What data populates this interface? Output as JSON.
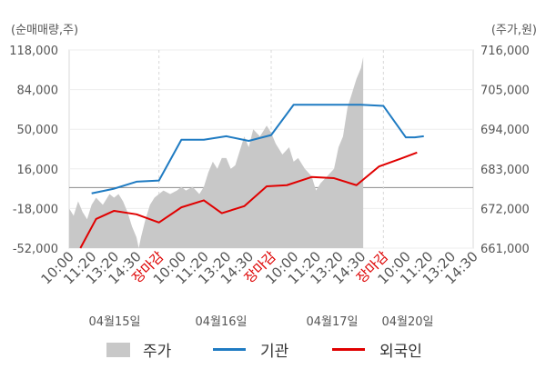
{
  "units": {
    "left": "(순매매량,주)",
    "right": "(주가,원)"
  },
  "colors": {
    "price_area": "#c8c8c8",
    "institution": "#1f7bc2",
    "foreign": "#e00000",
    "holiday_label": "#dd0000"
  },
  "legend": {
    "price": "주가",
    "institution": "기관",
    "foreign": "외국인"
  },
  "chart_data": {
    "type": "line",
    "y_left": {
      "ticks": [
        "118,000",
        "84,000",
        "50,000",
        "16,000",
        "-18,000",
        "-52,000"
      ],
      "values": [
        118000,
        84000,
        50000,
        16000,
        -18000,
        -52000
      ],
      "range": [
        -52000,
        118000
      ]
    },
    "y_right": {
      "ticks": [
        "716,000",
        "705,000",
        "694,000",
        "683,000",
        "672,000",
        "661,000"
      ],
      "values": [
        716000,
        705000,
        694000,
        683000,
        672000,
        661000
      ],
      "range": [
        661000,
        716000
      ]
    },
    "x_labels": [
      {
        "text": "10:00",
        "holiday": false
      },
      {
        "text": "11:20",
        "holiday": false
      },
      {
        "text": "13:20",
        "holiday": false
      },
      {
        "text": "14:30",
        "holiday": false
      },
      {
        "text": "장마감",
        "holiday": true
      },
      {
        "text": "10:00",
        "holiday": false
      },
      {
        "text": "11:20",
        "holiday": false
      },
      {
        "text": "13:20",
        "holiday": false
      },
      {
        "text": "14:30",
        "holiday": false
      },
      {
        "text": "장마감",
        "holiday": true
      },
      {
        "text": "10:00",
        "holiday": false
      },
      {
        "text": "11:20",
        "holiday": false
      },
      {
        "text": "13:20",
        "holiday": false
      },
      {
        "text": "14:30",
        "holiday": false
      },
      {
        "text": "장마감",
        "holiday": true
      },
      {
        "text": "10:00",
        "holiday": false
      },
      {
        "text": "11:20",
        "holiday": false
      },
      {
        "text": "13:20",
        "holiday": false
      },
      {
        "text": "14:30",
        "holiday": false
      }
    ],
    "day_labels": [
      "04월15일",
      "04월16일",
      "04월17일",
      "04월20일"
    ],
    "series": [
      {
        "name": "기관",
        "axis": "left",
        "points": [
          [
            1,
            -5000
          ],
          [
            2,
            -1000
          ],
          [
            3,
            5000
          ],
          [
            4,
            6000
          ],
          [
            5,
            41000
          ],
          [
            6,
            41000
          ],
          [
            7,
            44000
          ],
          [
            8,
            40000
          ],
          [
            9,
            45000
          ],
          [
            10,
            71000
          ],
          [
            11,
            71000
          ],
          [
            12,
            71000
          ],
          [
            13,
            71000
          ],
          [
            14,
            70000
          ],
          [
            15,
            43000
          ],
          [
            15.4,
            43000
          ],
          [
            15.8,
            44000
          ]
        ]
      },
      {
        "name": "외국인",
        "axis": "left",
        "points": [
          [
            0.5,
            -52000
          ],
          [
            1.2,
            -27000
          ],
          [
            2,
            -20000
          ],
          [
            3,
            -23000
          ],
          [
            4,
            -30000
          ],
          [
            5,
            -17000
          ],
          [
            6,
            -11000
          ],
          [
            6.8,
            -22000
          ],
          [
            7.8,
            -16000
          ],
          [
            8.8,
            1000
          ],
          [
            9.7,
            2000
          ],
          [
            10.8,
            9000
          ],
          [
            11.8,
            8000
          ],
          [
            12.8,
            2000
          ],
          [
            13.8,
            18000
          ],
          [
            14.8,
            25000
          ],
          [
            15.5,
            30000
          ]
        ]
      },
      {
        "name": "주가",
        "axis": "right",
        "points": [
          [
            0,
            672
          ],
          [
            0.2,
            670
          ],
          [
            0.4,
            674
          ],
          [
            0.6,
            671
          ],
          [
            0.8,
            669
          ],
          [
            1.0,
            673
          ],
          [
            1.2,
            675
          ],
          [
            1.5,
            673
          ],
          [
            1.8,
            676
          ],
          [
            2.0,
            675
          ],
          [
            2.2,
            676
          ],
          [
            2.4,
            674
          ],
          [
            2.6,
            671
          ],
          [
            2.8,
            667
          ],
          [
            3.0,
            664
          ],
          [
            3.1,
            661
          ],
          [
            3.2,
            664
          ],
          [
            3.4,
            669
          ],
          [
            3.6,
            673
          ],
          [
            3.8,
            675
          ],
          [
            4.0,
            676
          ],
          [
            4.2,
            677
          ],
          [
            4.5,
            676
          ],
          [
            4.8,
            677
          ],
          [
            5.0,
            678
          ],
          [
            5.2,
            677
          ],
          [
            5.5,
            678
          ],
          [
            5.8,
            676
          ],
          [
            6.0,
            678
          ],
          [
            6.2,
            682
          ],
          [
            6.4,
            685
          ],
          [
            6.6,
            683
          ],
          [
            6.8,
            686
          ],
          [
            7.0,
            686
          ],
          [
            7.2,
            683
          ],
          [
            7.4,
            684
          ],
          [
            7.6,
            688
          ],
          [
            7.8,
            692
          ],
          [
            8.0,
            689
          ],
          [
            8.2,
            694
          ],
          [
            8.5,
            692
          ],
          [
            8.8,
            695
          ],
          [
            9.0,
            693
          ],
          [
            9.2,
            690
          ],
          [
            9.5,
            687
          ],
          [
            9.8,
            689
          ],
          [
            10.0,
            685
          ],
          [
            10.2,
            686
          ],
          [
            10.5,
            683
          ],
          [
            10.8,
            681
          ],
          [
            11.0,
            677
          ],
          [
            11.2,
            679
          ],
          [
            11.5,
            681
          ],
          [
            11.8,
            683
          ],
          [
            12.0,
            689
          ],
          [
            12.2,
            692
          ],
          [
            12.4,
            700
          ],
          [
            12.6,
            704
          ],
          [
            12.8,
            708
          ],
          [
            13.0,
            711
          ],
          [
            13.1,
            714
          ]
        ]
      }
    ]
  }
}
